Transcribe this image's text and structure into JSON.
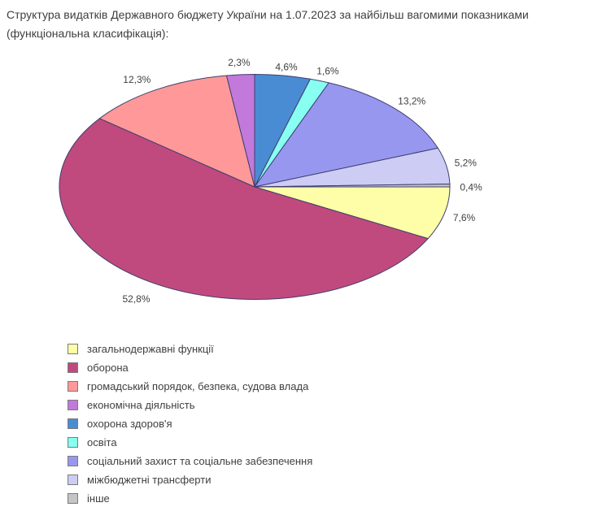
{
  "title_line1": "Структура видатків Державного бюджету України на 1.07.2023 за найбільш вагомими показниками",
  "title_line2": "(функціональна класифікація):",
  "colors": {
    "background": "#ffffff",
    "slice_border": "#3f3f6e",
    "label_text": "#3f3f3f",
    "legend_swatch_border": "#7a7a7a"
  },
  "chart_data": {
    "type": "pie",
    "title": "Структура видатків Державного бюджету України на 1.07.2023 за найбільш вагомими показниками (функціональна класифікація):",
    "unit": "%",
    "shape": "ellipse",
    "start_angle_deg": 0,
    "direction": "clockwise",
    "legend_position": "bottom-left",
    "series": [
      {
        "label": "загальнодержавні функції",
        "value": 7.6,
        "display": "7,6%",
        "color": "#fefea8"
      },
      {
        "label": "оборона",
        "value": 52.8,
        "display": "52,8%",
        "color": "#c04a7e"
      },
      {
        "label": "громадський порядок, безпека, судова влада",
        "value": 12.3,
        "display": "12,3%",
        "color": "#ff9999"
      },
      {
        "label": "економічна діяльність",
        "value": 2.3,
        "display": "2,3%",
        "color": "#c279db"
      },
      {
        "label": "охорона здоров'я",
        "value": 4.6,
        "display": "4,6%",
        "color": "#4a8cd3"
      },
      {
        "label": "освіта",
        "value": 1.6,
        "display": "1,6%",
        "color": "#87fff1"
      },
      {
        "label": "соціальний захист та соціальне забезпечення",
        "value": 13.2,
        "display": "13,2%",
        "color": "#9897f0"
      },
      {
        "label": "міжбюджетні трансферти",
        "value": 5.2,
        "display": "5,2%",
        "color": "#cdccf5"
      },
      {
        "label": "інше",
        "value": 0.4,
        "display": "0,4%",
        "color": "#c5c5c5"
      }
    ]
  }
}
